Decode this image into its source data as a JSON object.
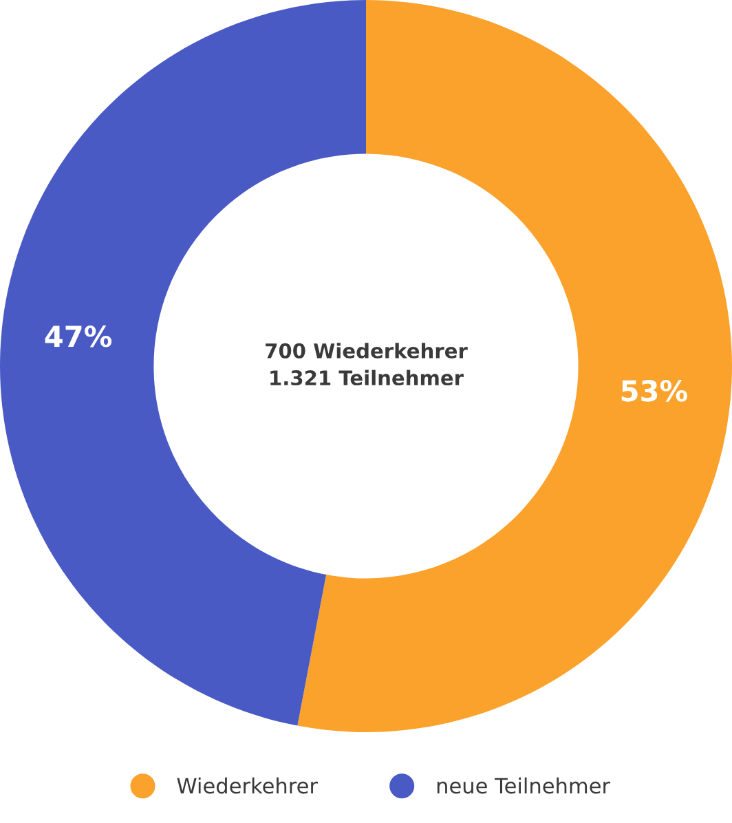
{
  "chart_data": {
    "type": "donut",
    "categories": [
      "Wiederkehrer",
      "neue Teilnehmer"
    ],
    "values": [
      53,
      47
    ],
    "colors": [
      "#fba22c",
      "#4a5ac4"
    ],
    "value_labels": [
      "53%",
      "47%"
    ],
    "annotations": [
      "700 Wiederkehrer\n1.321 Teilnehmer"
    ],
    "legend": "bottom"
  }
}
